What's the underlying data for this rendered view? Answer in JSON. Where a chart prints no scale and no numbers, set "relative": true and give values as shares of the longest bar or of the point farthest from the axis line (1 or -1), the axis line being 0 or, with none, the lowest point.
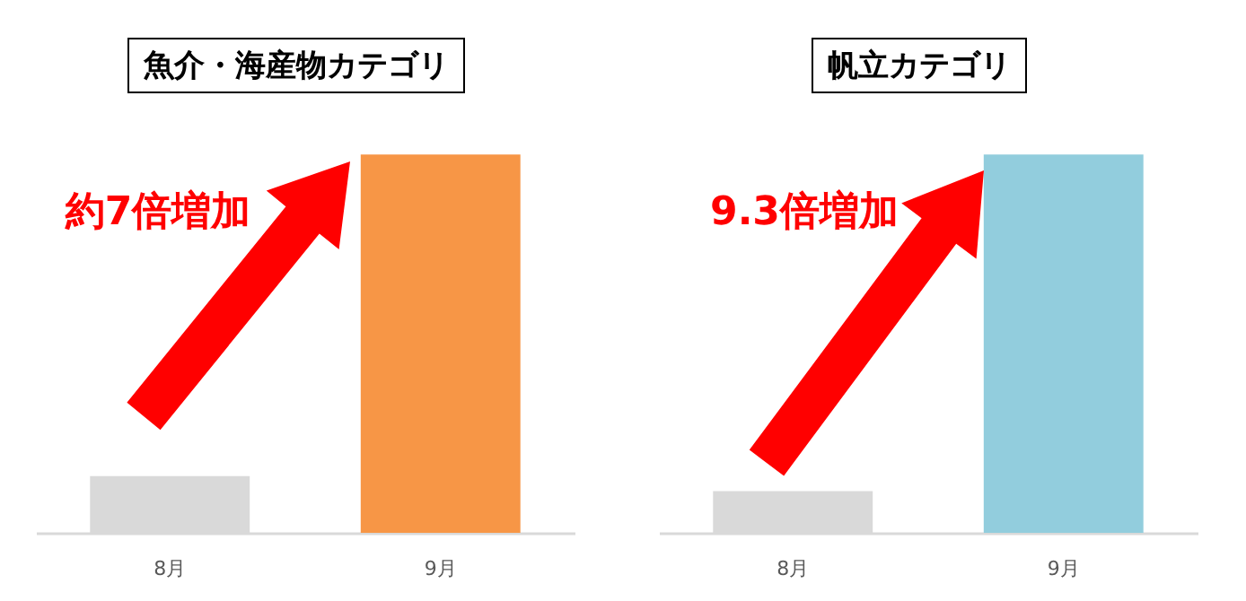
{
  "chart_data": [
    {
      "type": "bar",
      "title": "魚介・海産物カテゴリ",
      "categories": [
        "8月",
        "9月"
      ],
      "values": [
        0.15,
        1
      ],
      "colors": [
        "#d9d9d9",
        "#f79646"
      ],
      "relative": true,
      "annotations": [
        "約7倍増加"
      ]
    },
    {
      "type": "bar",
      "title": "帆立カテゴリ",
      "categories": [
        "8月",
        "9月"
      ],
      "values": [
        0.11,
        1
      ],
      "colors": [
        "#d9d9d9",
        "#92cddd"
      ],
      "relative": true,
      "annotations": [
        "9.3倍増加"
      ]
    }
  ]
}
